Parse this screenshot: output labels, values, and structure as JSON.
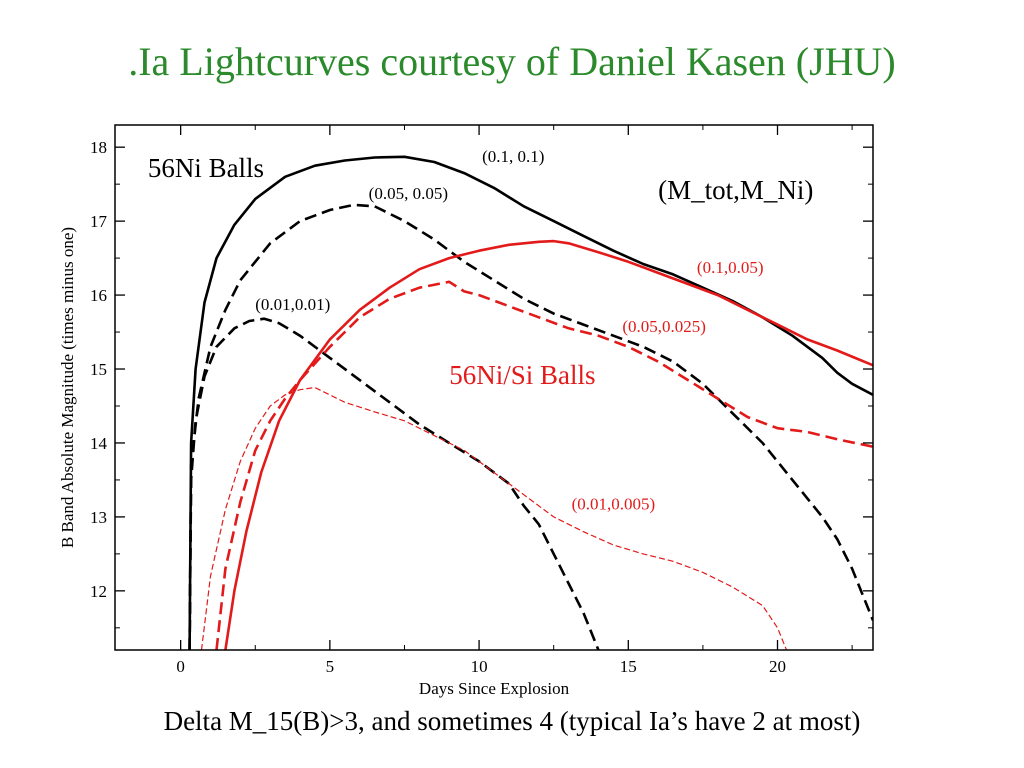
{
  "slide": {
    "title": ".Ia Lightcurves courtesy of Daniel Kasen (JHU)",
    "caption": "Delta M_15(B)>3, and sometimes 4 (typical Ia’s have 2 at most)"
  },
  "chart_data": {
    "type": "line",
    "xlabel": "Days Since Explosion",
    "ylabel": "B Band Absolute Magnitude (times minus one)",
    "xlim": [
      -2.2,
      23.2
    ],
    "ylim": [
      11.2,
      18.3
    ],
    "xticks": [
      0,
      5,
      10,
      15,
      20
    ],
    "yticks": [
      12,
      13,
      14,
      15,
      16,
      17,
      18
    ],
    "colors": {
      "black": "#000000",
      "red": "#e31a1a",
      "title": "#2b8a2b"
    },
    "annotations": [
      {
        "text": "56Ni Balls",
        "x": -1.1,
        "y": 17.6,
        "color": "#000000",
        "size": "large"
      },
      {
        "text": "(M_tot,M_Ni)",
        "x": 16.0,
        "y": 17.3,
        "color": "#000000",
        "size": "large"
      },
      {
        "text": "56Ni/Si Balls",
        "x": 9.0,
        "y": 14.8,
        "color": "#e31a1a",
        "size": "large"
      },
      {
        "text": "(0.1, 0.1)",
        "x": 10.1,
        "y": 17.8,
        "color": "#000000",
        "size": "small"
      },
      {
        "text": "(0.05, 0.05)",
        "x": 6.3,
        "y": 17.3,
        "color": "#000000",
        "size": "small"
      },
      {
        "text": "(0.01,0.01)",
        "x": 2.5,
        "y": 15.8,
        "color": "#000000",
        "size": "small"
      },
      {
        "text": "(0.1,0.05)",
        "x": 17.3,
        "y": 16.3,
        "color": "#e31a1a",
        "size": "small"
      },
      {
        "text": "(0.05,0.025)",
        "x": 14.8,
        "y": 15.5,
        "color": "#e31a1a",
        "size": "small"
      },
      {
        "text": "(0.01,0.005)",
        "x": 13.1,
        "y": 13.1,
        "color": "#e31a1a",
        "size": "small"
      }
    ],
    "series": [
      {
        "color": "#000000",
        "style": "solid",
        "width": 2.6,
        "x": [
          0.3,
          0.35,
          0.5,
          0.8,
          1.2,
          1.8,
          2.5,
          3.5,
          4.5,
          5.5,
          6.5,
          7.5,
          8.5,
          9.5,
          10.5,
          11.5,
          12.5,
          13.5,
          14.5,
          15.5,
          16.5,
          17.5,
          18.5,
          19.5,
          20.5,
          21.5,
          22.0,
          22.5,
          23.2
        ],
        "y": [
          11.2,
          14.0,
          15.0,
          15.9,
          16.5,
          16.95,
          17.3,
          17.6,
          17.75,
          17.82,
          17.86,
          17.87,
          17.8,
          17.65,
          17.45,
          17.2,
          17.0,
          16.8,
          16.6,
          16.42,
          16.28,
          16.1,
          15.92,
          15.7,
          15.45,
          15.15,
          14.95,
          14.8,
          14.65
        ]
      },
      {
        "color": "#000000",
        "style": "dash",
        "width": 2.6,
        "x": [
          0.3,
          0.35,
          0.6,
          1.0,
          1.5,
          2.0,
          3.0,
          4.0,
          5.0,
          5.8,
          6.5,
          7.5,
          8.5,
          9.5,
          10.5,
          11.5,
          12.5,
          13.5,
          14.5,
          15.5,
          16.5,
          17.5,
          18.5,
          19.5,
          20.5,
          21.5,
          22.0,
          22.5,
          23.2
        ],
        "y": [
          11.2,
          13.7,
          14.6,
          15.3,
          15.8,
          16.2,
          16.7,
          17.0,
          17.15,
          17.22,
          17.2,
          17.0,
          16.75,
          16.45,
          16.2,
          15.95,
          15.75,
          15.6,
          15.45,
          15.3,
          15.1,
          14.8,
          14.4,
          14.0,
          13.5,
          13.0,
          12.7,
          12.3,
          11.6
        ]
      },
      {
        "color": "#000000",
        "style": "dash",
        "width": 2.6,
        "x": [
          0.3,
          0.35,
          0.5,
          0.8,
          1.2,
          1.8,
          2.3,
          2.8,
          3.3,
          4.0,
          5.0,
          6.0,
          7.0,
          8.0,
          9.0,
          10.0,
          11.0,
          11.5,
          12.0,
          12.5,
          13.0,
          13.5,
          13.8,
          14.0
        ],
        "y": [
          11.2,
          13.5,
          14.3,
          14.9,
          15.3,
          15.55,
          15.65,
          15.68,
          15.62,
          15.45,
          15.15,
          14.85,
          14.55,
          14.25,
          14.0,
          13.75,
          13.45,
          13.15,
          12.9,
          12.5,
          12.1,
          11.7,
          11.4,
          11.2
        ]
      },
      {
        "color": "#e31a1a",
        "style": "solid",
        "width": 2.6,
        "x": [
          1.5,
          1.8,
          2.2,
          2.7,
          3.3,
          4.0,
          5.0,
          6.0,
          7.0,
          8.0,
          9.0,
          10.0,
          11.0,
          12.0,
          12.5,
          13.0,
          14.0,
          15.0,
          16.0,
          17.0,
          18.0,
          19.0,
          20.0,
          21.0,
          22.0,
          23.2
        ],
        "y": [
          11.2,
          12.0,
          12.8,
          13.6,
          14.3,
          14.85,
          15.4,
          15.8,
          16.1,
          16.35,
          16.5,
          16.6,
          16.68,
          16.72,
          16.73,
          16.7,
          16.58,
          16.45,
          16.3,
          16.15,
          16.0,
          15.8,
          15.6,
          15.4,
          15.25,
          15.05
        ]
      },
      {
        "color": "#e31a1a",
        "style": "dash",
        "width": 2.6,
        "x": [
          1.2,
          1.5,
          2.0,
          2.5,
          3.0,
          3.5,
          4.0,
          5.0,
          6.0,
          7.0,
          8.0,
          9.0,
          9.5,
          10.0,
          11.0,
          12.0,
          13.0,
          14.0,
          15.0,
          16.0,
          17.0,
          18.0,
          19.0,
          20.0,
          21.0,
          22.0,
          23.2
        ],
        "y": [
          11.2,
          12.3,
          13.2,
          13.9,
          14.3,
          14.6,
          14.85,
          15.3,
          15.7,
          15.95,
          16.1,
          16.18,
          16.05,
          16.0,
          15.85,
          15.7,
          15.55,
          15.45,
          15.3,
          15.1,
          14.85,
          14.6,
          14.35,
          14.2,
          14.15,
          14.05,
          13.95
        ]
      },
      {
        "color": "#e31a1a",
        "style": "dash",
        "width": 1.2,
        "x": [
          0.7,
          1.0,
          1.5,
          2.0,
          2.5,
          3.0,
          3.5,
          4.0,
          4.5,
          5.5,
          6.5,
          7.5,
          8.5,
          9.5,
          10.5,
          11.5,
          12.5,
          13.5,
          14.5,
          15.5,
          16.5,
          17.5,
          18.5,
          19.5,
          20.0,
          20.3
        ],
        "y": [
          11.2,
          12.2,
          13.1,
          13.75,
          14.2,
          14.5,
          14.65,
          14.72,
          14.75,
          14.55,
          14.42,
          14.3,
          14.1,
          13.9,
          13.6,
          13.3,
          13.0,
          12.8,
          12.62,
          12.5,
          12.4,
          12.25,
          12.05,
          11.8,
          11.5,
          11.2
        ]
      }
    ]
  }
}
